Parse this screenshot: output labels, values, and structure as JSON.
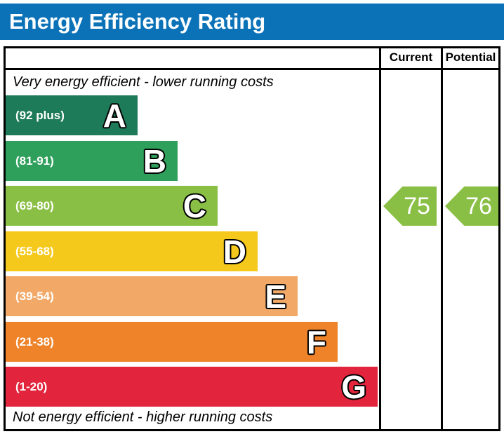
{
  "title": "Energy Efficiency Rating",
  "table": {
    "current_header": "Current",
    "potential_header": "Potential",
    "top_note": "Very energy efficient - lower running costs",
    "bottom_note": "Not energy efficient - higher running costs"
  },
  "bands": [
    {
      "letter": "A",
      "range": "(92 plus)",
      "color": "#1e7b5a"
    },
    {
      "letter": "B",
      "range": "(81-91)",
      "color": "#2ea05b"
    },
    {
      "letter": "C",
      "range": "(69-80)",
      "color": "#8abf45"
    },
    {
      "letter": "D",
      "range": "(55-68)",
      "color": "#f5c91b"
    },
    {
      "letter": "E",
      "range": "(39-54)",
      "color": "#f2a968"
    },
    {
      "letter": "F",
      "range": "(21-38)",
      "color": "#ee8329"
    },
    {
      "letter": "G",
      "range": "(1-20)",
      "color": "#e2243c"
    }
  ],
  "ratings": {
    "current": {
      "value": "75",
      "color": "#8abf45"
    },
    "potential": {
      "value": "76",
      "color": "#8abf45"
    }
  },
  "colors": {
    "title_bar": "#0c72b8",
    "border": "#000000"
  },
  "chart_data": {
    "type": "bar",
    "title": "Energy Efficiency Rating",
    "categories": [
      "A",
      "B",
      "C",
      "D",
      "E",
      "F",
      "G"
    ],
    "band_ranges": [
      "92 plus",
      "81-91",
      "69-80",
      "55-68",
      "39-54",
      "21-38",
      "1-20"
    ],
    "band_colors": [
      "#1e7b5a",
      "#2ea05b",
      "#8abf45",
      "#f5c91b",
      "#f2a968",
      "#ee8329",
      "#e2243c"
    ],
    "markers": [
      {
        "name": "Current",
        "value": 75,
        "band": "C",
        "color": "#8abf45"
      },
      {
        "name": "Potential",
        "value": 76,
        "band": "C",
        "color": "#8abf45"
      }
    ],
    "scale": [
      1,
      100
    ],
    "top_note": "Very energy efficient - lower running costs",
    "bottom_note": "Not energy efficient - higher running costs",
    "legend_position": "none",
    "grid": false
  }
}
